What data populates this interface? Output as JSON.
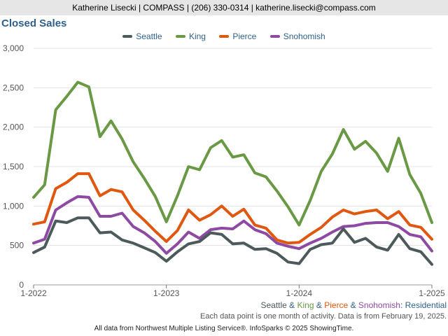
{
  "header": {
    "text": "Katherine Lisecki | COMPASS | (206) 330-0314 | katherine.lisecki@compass.com"
  },
  "subtitle": {
    "parts": [
      {
        "text": "Seattle",
        "color": "#4d5a5b"
      },
      {
        "text": " & ",
        "color": "#2f5f8a"
      },
      {
        "text": "King",
        "color": "#6a9945"
      },
      {
        "text": " & ",
        "color": "#2f5f8a"
      },
      {
        "text": "Pierce",
        "color": "#e0570f"
      },
      {
        "text": " & ",
        "color": "#2f5f8a"
      },
      {
        "text": "Snohomish",
        "color": "#8e4aa2"
      },
      {
        "text": ": Residential",
        "color": "#2f5f8a"
      }
    ]
  },
  "note": "Each data point is one month of activity. Data is from February 19, 2025.",
  "footer": "All data from Northwest Multiple Listing Service®. InfoSparks © 2025 ShowingTime.",
  "chart_data": {
    "type": "line",
    "title": "Closed Sales",
    "x": [
      "2022-01",
      "2022-02",
      "2022-03",
      "2022-04",
      "2022-05",
      "2022-06",
      "2022-07",
      "2022-08",
      "2022-09",
      "2022-10",
      "2022-11",
      "2022-12",
      "2023-01",
      "2023-02",
      "2023-03",
      "2023-04",
      "2023-05",
      "2023-06",
      "2023-07",
      "2023-08",
      "2023-09",
      "2023-10",
      "2023-11",
      "2023-12",
      "2024-01",
      "2024-02",
      "2024-03",
      "2024-04",
      "2024-05",
      "2024-06",
      "2024-07",
      "2024-08",
      "2024-09",
      "2024-10",
      "2024-11",
      "2024-12",
      "2025-01"
    ],
    "x_tick_labels": [
      {
        "index": 0,
        "label": "1-2022"
      },
      {
        "index": 12,
        "label": "1-2023"
      },
      {
        "index": 24,
        "label": "1-2024"
      },
      {
        "index": 36,
        "label": "1-2025"
      }
    ],
    "y_ticks": [
      "0",
      "500",
      "1,000",
      "1,500",
      "2,000",
      "2,500",
      "3,000"
    ],
    "ylim": [
      0,
      3000
    ],
    "grid": true,
    "legend_position": "top",
    "series": [
      {
        "name": "Seattle",
        "color": "#4d5a5b",
        "values": [
          410,
          480,
          810,
          790,
          850,
          850,
          660,
          670,
          570,
          530,
          470,
          410,
          300,
          420,
          520,
          550,
          660,
          640,
          520,
          530,
          450,
          460,
          400,
          290,
          270,
          450,
          510,
          530,
          710,
          540,
          590,
          480,
          440,
          640,
          460,
          420,
          260
        ]
      },
      {
        "name": "King",
        "color": "#6a9945",
        "values": [
          1110,
          1270,
          2220,
          2390,
          2570,
          2510,
          1880,
          2080,
          1850,
          1560,
          1350,
          1120,
          800,
          1130,
          1500,
          1460,
          1740,
          1830,
          1620,
          1650,
          1420,
          1370,
          1190,
          990,
          760,
          1070,
          1440,
          1660,
          1970,
          1720,
          1820,
          1670,
          1440,
          1860,
          1400,
          1160,
          790
        ]
      },
      {
        "name": "Pierce",
        "color": "#e0570f",
        "values": [
          770,
          800,
          1220,
          1300,
          1410,
          1410,
          1130,
          1210,
          1180,
          950,
          820,
          680,
          550,
          690,
          950,
          820,
          890,
          1000,
          870,
          960,
          760,
          720,
          570,
          530,
          540,
          640,
          730,
          860,
          950,
          900,
          930,
          950,
          840,
          930,
          760,
          730,
          580
        ]
      },
      {
        "name": "Snohomish",
        "color": "#8e4aa2",
        "values": [
          530,
          580,
          950,
          1040,
          1120,
          1110,
          870,
          870,
          910,
          740,
          660,
          550,
          400,
          520,
          670,
          590,
          700,
          720,
          710,
          810,
          700,
          650,
          530,
          490,
          460,
          530,
          590,
          670,
          740,
          750,
          780,
          790,
          790,
          740,
          640,
          610,
          430
        ]
      }
    ]
  }
}
